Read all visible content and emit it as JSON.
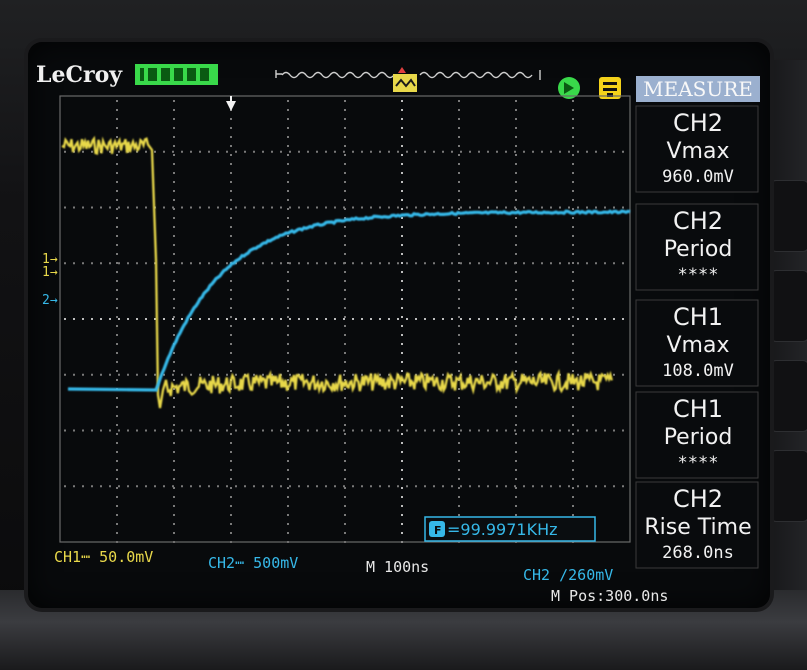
{
  "brand": "LeCroy",
  "panel": {
    "title": "MEASURE",
    "items": [
      {
        "channel": "CH2",
        "name": "Vmax",
        "value": "960.0mV"
      },
      {
        "channel": "CH2",
        "name": "Period",
        "value": "****"
      },
      {
        "channel": "CH1",
        "name": "Vmax",
        "value": "108.0mV"
      },
      {
        "channel": "CH1",
        "name": "Period",
        "value": "****"
      },
      {
        "channel": "CH2",
        "name": "Rise Time",
        "value": "268.0ns"
      }
    ]
  },
  "status": {
    "ch1": "CH1┉ 50.0mV",
    "ch2": "CH2┉ 500mV",
    "timebase": "M 100ns",
    "trigger": "CH2 ∕260mV",
    "mpos": "M Pos:300.0ns",
    "freq": "=99.9971KHz"
  },
  "markers": {
    "ch1": "1→",
    "ch2": "2→"
  },
  "colors": {
    "ch1": "#e8d84a",
    "ch2": "#36b8e8",
    "accent": "#39d94a"
  }
}
